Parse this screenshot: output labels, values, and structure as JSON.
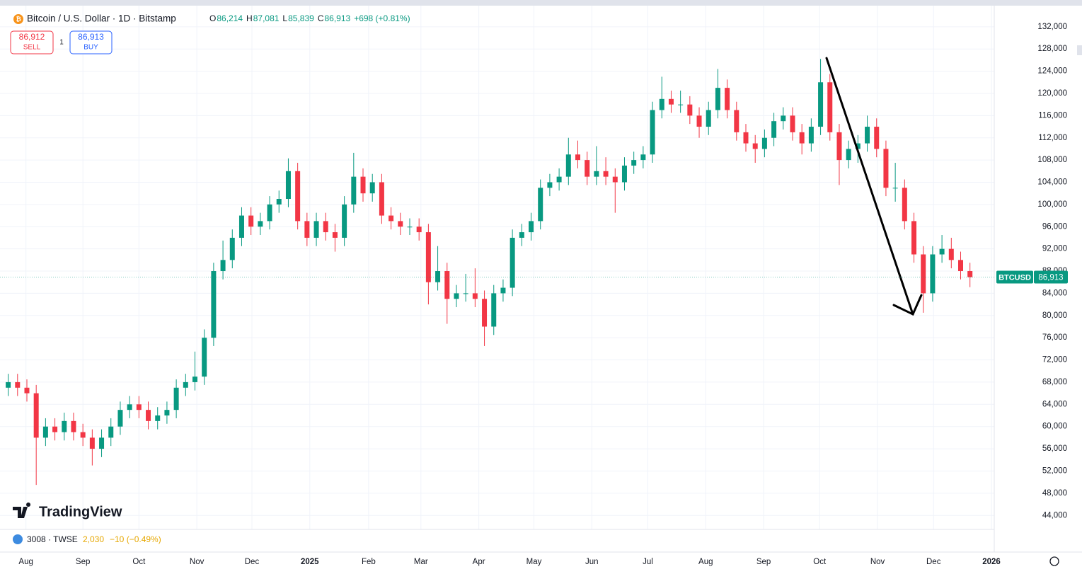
{
  "header": {
    "title": "Bitcoin / U.S. Dollar · 1D · Bitstamp",
    "ohlc": [
      {
        "key": "O",
        "value": "86,214"
      },
      {
        "key": "H",
        "value": "87,081"
      },
      {
        "key": "L",
        "value": "85,839"
      },
      {
        "key": "C",
        "value": "86,913"
      }
    ],
    "change": "+698 (+0.81%)",
    "sell_price": "86,912",
    "sell": "SELL",
    "spread": "1",
    "buy_price": "86,913",
    "buy": "BUY"
  },
  "logo": "TradingView",
  "footer": {
    "symbol": "3008 · TWSE",
    "price": "2,030",
    "change": "−10 (−0.49%)"
  },
  "chart_data": {
    "type": "candlestick",
    "up_color": "#089981",
    "down_color": "#f23645",
    "grid": true,
    "xlim": [
      -0.5,
      105.6
    ],
    "xticks": [
      {
        "value": 1.9,
        "label": "Aug"
      },
      {
        "value": 8.0,
        "label": "Sep"
      },
      {
        "value": 14.0,
        "label": "Oct"
      },
      {
        "value": 20.2,
        "label": "Nov"
      },
      {
        "value": 26.1,
        "label": "Dec"
      },
      {
        "value": 32.3,
        "label": "2025"
      },
      {
        "value": 38.6,
        "label": "Feb"
      },
      {
        "value": 44.2,
        "label": "Mar"
      },
      {
        "value": 50.4,
        "label": "Apr"
      },
      {
        "value": 56.3,
        "label": "May"
      },
      {
        "value": 62.5,
        "label": "Jun"
      },
      {
        "value": 68.5,
        "label": "Jul"
      },
      {
        "value": 74.7,
        "label": "Aug"
      },
      {
        "value": 80.9,
        "label": "Sep"
      },
      {
        "value": 86.9,
        "label": "Oct"
      },
      {
        "value": 93.1,
        "label": "Nov"
      },
      {
        "value": 99.1,
        "label": "Dec"
      },
      {
        "value": 105.3,
        "label": "2026"
      }
    ],
    "ylim": [
      37400,
      135800
    ],
    "yticks": [
      {
        "value": 44000,
        "label": "44,000"
      },
      {
        "value": 48000,
        "label": "48,000"
      },
      {
        "value": 52000,
        "label": "52,000"
      },
      {
        "value": 56000,
        "label": "56,000"
      },
      {
        "value": 60000,
        "label": "60,000"
      },
      {
        "value": 64000,
        "label": "64,000"
      },
      {
        "value": 68000,
        "label": "68,000"
      },
      {
        "value": 72000,
        "label": "72,000"
      },
      {
        "value": 76000,
        "label": "76,000"
      },
      {
        "value": 80000,
        "label": "80,000"
      },
      {
        "value": 84000,
        "label": "84,000"
      },
      {
        "value": 88000,
        "label": "88,000"
      },
      {
        "value": 92000,
        "label": "92,000"
      },
      {
        "value": 96000,
        "label": "96,000"
      },
      {
        "value": 100000,
        "label": "100,000"
      },
      {
        "value": 104000,
        "label": "104,000"
      },
      {
        "value": 108000,
        "label": "108,000"
      },
      {
        "value": 112000,
        "label": "112,000"
      },
      {
        "value": 116000,
        "label": "116,000"
      },
      {
        "value": 120000,
        "label": "120,000"
      },
      {
        "value": 124000,
        "label": "124,000"
      },
      {
        "value": 128000,
        "label": "128,000"
      },
      {
        "value": 132000,
        "label": "132,000"
      }
    ],
    "open": [
      67000,
      68000,
      67000,
      66000,
      58000,
      60000,
      59000,
      61000,
      59000,
      58000,
      56000,
      58000,
      60000,
      63000,
      64000,
      63000,
      61000,
      62000,
      63000,
      67000,
      68000,
      69000,
      76000,
      88000,
      90000,
      94000,
      98000,
      96000,
      97000,
      100000,
      101000,
      106000,
      97000,
      94000,
      97000,
      95000,
      94000,
      100000,
      105000,
      102000,
      104000,
      98000,
      97000,
      96000,
      96000,
      95000,
      86000,
      88000,
      83000,
      84000,
      84000,
      83000,
      78000,
      84000,
      85000,
      94000,
      95000,
      97000,
      103000,
      104000,
      105000,
      109000,
      108000,
      105000,
      106000,
      105000,
      104000,
      107000,
      108000,
      109000,
      117000,
      119000,
      118000,
      118000,
      116000,
      114000,
      117000,
      121000,
      117000,
      113000,
      111000,
      110000,
      112000,
      115000,
      116000,
      113000,
      111000,
      114000,
      122000,
      113000,
      108000,
      110000,
      111000,
      114000,
      110000,
      103000,
      103000,
      97000,
      91000,
      84000,
      91000,
      92000,
      90000,
      88000
    ],
    "high": [
      69500,
      69500,
      68500,
      67500,
      61500,
      61500,
      62500,
      62500,
      60500,
      59500,
      59500,
      61500,
      64500,
      65500,
      65500,
      64500,
      63500,
      64500,
      68500,
      69500,
      73500,
      77500,
      89500,
      93500,
      95500,
      99500,
      99500,
      98500,
      101500,
      102500,
      108300,
      107500,
      98500,
      98500,
      98500,
      96500,
      101500,
      109300,
      106500,
      105500,
      105500,
      99500,
      98500,
      97500,
      97500,
      96500,
      92500,
      89500,
      85500,
      87500,
      88500,
      84500,
      85500,
      86500,
      95500,
      96500,
      98500,
      104500,
      105500,
      106500,
      112000,
      111500,
      109500,
      110500,
      108500,
      106500,
      108500,
      109500,
      110500,
      118500,
      123000,
      120500,
      120500,
      119500,
      117500,
      118500,
      124400,
      122500,
      118500,
      114500,
      112500,
      113500,
      116500,
      117500,
      117500,
      114500,
      115500,
      126200,
      123500,
      114500,
      111500,
      112500,
      116000,
      115500,
      111500,
      107500,
      104500,
      98500,
      92500,
      92500,
      94500,
      94000,
      91500,
      89500
    ],
    "low": [
      65500,
      65500,
      64500,
      49500,
      56500,
      57500,
      57500,
      57500,
      56500,
      53000,
      54500,
      56500,
      58500,
      61500,
      61500,
      59500,
      59500,
      60500,
      61500,
      65500,
      66500,
      67500,
      74500,
      86500,
      88500,
      92500,
      94500,
      94500,
      95500,
      98500,
      99500,
      95500,
      92500,
      92500,
      93500,
      91500,
      92500,
      98500,
      100500,
      100500,
      96500,
      95500,
      94500,
      94500,
      93500,
      82000,
      84500,
      78500,
      81500,
      82500,
      81500,
      74500,
      76500,
      82500,
      83500,
      92500,
      93500,
      95500,
      101500,
      102500,
      103500,
      106500,
      103500,
      103500,
      103500,
      98500,
      102500,
      105500,
      106500,
      107500,
      115500,
      116500,
      116500,
      114500,
      112000,
      112500,
      115500,
      115500,
      111500,
      109500,
      107500,
      108500,
      110500,
      113500,
      111500,
      109000,
      109500,
      112500,
      111500,
      103500,
      106500,
      107500,
      109500,
      108500,
      101500,
      100500,
      95500,
      89500,
      80500,
      82500,
      89500,
      88500,
      86500,
      85100
    ],
    "close": [
      68000,
      67000,
      66000,
      58000,
      60000,
      59000,
      61000,
      59000,
      58000,
      56000,
      58000,
      60000,
      63000,
      64000,
      63000,
      61000,
      62000,
      63000,
      67000,
      68000,
      69000,
      76000,
      88000,
      90000,
      94000,
      98000,
      96000,
      97000,
      100000,
      101000,
      106000,
      97000,
      94000,
      97000,
      95000,
      94000,
      100000,
      105000,
      102000,
      104000,
      98000,
      97000,
      96000,
      96000,
      95000,
      86000,
      88000,
      83000,
      84000,
      84000,
      83000,
      78000,
      84000,
      85000,
      94000,
      95000,
      97000,
      103000,
      104000,
      105000,
      109000,
      108000,
      105000,
      106000,
      105000,
      104000,
      107000,
      108000,
      109000,
      117000,
      119000,
      118000,
      118000,
      116000,
      114000,
      117000,
      121000,
      117000,
      113000,
      111000,
      110000,
      112000,
      115000,
      116000,
      113000,
      111000,
      114000,
      122000,
      113000,
      108000,
      110000,
      111000,
      114000,
      110000,
      103000,
      103000,
      97000,
      91000,
      84000,
      91000,
      92000,
      90000,
      88000,
      86913
    ],
    "price_tag": {
      "symbol": "BTCUSD",
      "value": 86913,
      "label": "86,913"
    }
  }
}
